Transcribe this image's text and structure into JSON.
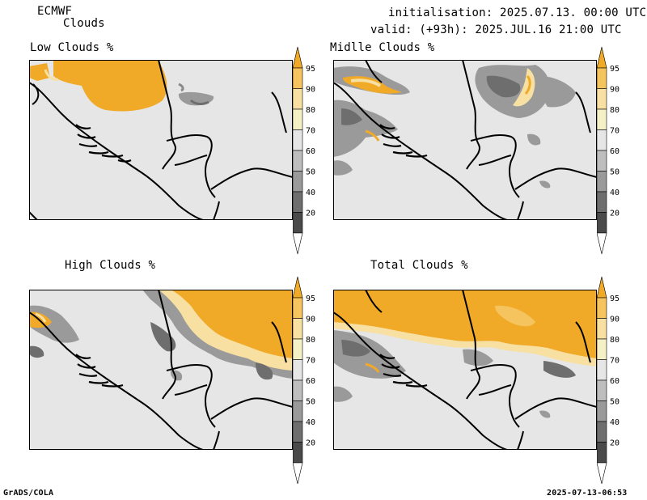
{
  "header": {
    "model": "ECMWF",
    "product": "Clouds",
    "init_line": "initialisation: 2025.07.13. 00:00 UTC",
    "valid_line": "valid: (+93h): 2025.JUL.16 21:00 UTC"
  },
  "panels": [
    {
      "title": "Low Clouds %"
    },
    {
      "title": "Midlle Clouds %"
    },
    {
      "title": "High Clouds %"
    },
    {
      "title": "Total Clouds %"
    }
  ],
  "colorbar": {
    "labels": [
      "95",
      "90",
      "80",
      "70",
      "60",
      "50",
      "40",
      "20"
    ],
    "colors": [
      "#f0aa28",
      "#f5c45e",
      "#f7e0a2",
      "#f4f1c6",
      "#e6e6e6",
      "#bebebe",
      "#9a9a9a",
      "#6e6e6e",
      "#4a4a4a",
      "#ffffff"
    ]
  },
  "footer": {
    "left": "GrADS/COLA",
    "right": "2025-07-13-06:53"
  }
}
